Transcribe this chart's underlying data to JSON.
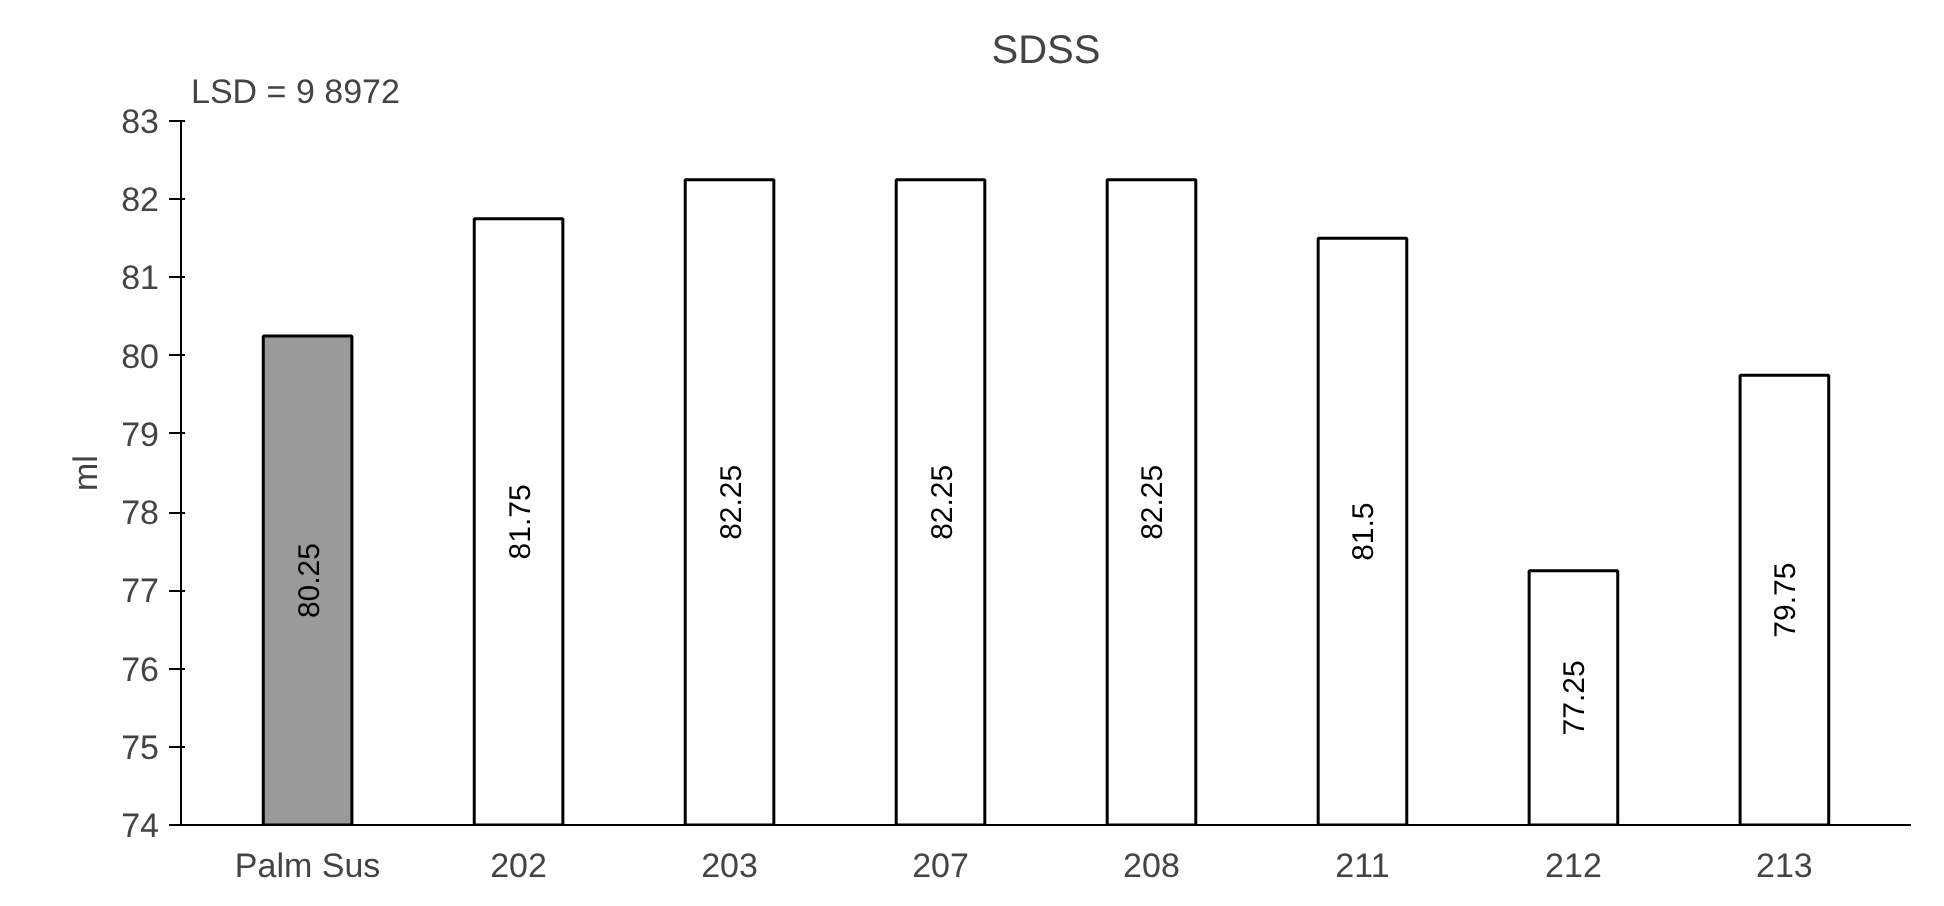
{
  "chart_data": {
    "type": "bar",
    "title": "SDSS",
    "ylabel": "ml",
    "annotations": [
      "LSD = 9 8972"
    ],
    "categories": [
      "Palm Sus",
      "202",
      "203",
      "207",
      "208",
      "211",
      "212",
      "213"
    ],
    "values": [
      80.25,
      81.75,
      82.25,
      82.25,
      82.25,
      81.5,
      77.25,
      79.75
    ],
    "colors": [
      "#9a9a9a",
      "#ffffff",
      "#ffffff",
      "#ffffff",
      "#ffffff",
      "#ffffff",
      "#ffffff",
      "#ffffff"
    ],
    "data_labels": true,
    "ylim": [
      74,
      83
    ],
    "yticks": [
      74,
      75,
      76,
      77,
      78,
      79,
      80,
      81,
      82,
      83
    ],
    "grid": false
  }
}
